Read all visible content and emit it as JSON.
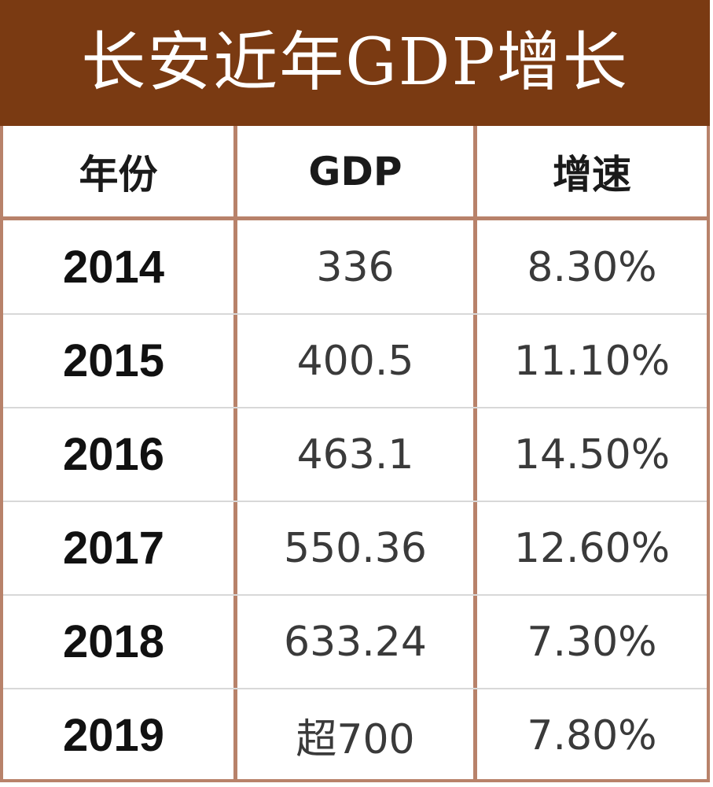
{
  "chart_data": {
    "type": "table",
    "title": "长安近年GDP增长",
    "columns": [
      "年份",
      "GDP",
      "增速"
    ],
    "rows": [
      {
        "year": "2014",
        "gdp": "336",
        "growth": "8.30%"
      },
      {
        "year": "2015",
        "gdp": "400.5",
        "growth": "11.10%"
      },
      {
        "year": "2016",
        "gdp": "463.1",
        "growth": "14.50%"
      },
      {
        "year": "2017",
        "gdp": "550.36",
        "growth": "12.60%"
      },
      {
        "year": "2018",
        "gdp": "633.24",
        "growth": "7.30%"
      },
      {
        "year": "2019",
        "gdp": "超700",
        "growth": "7.80%"
      }
    ]
  },
  "colors": {
    "title_bg": "#7a3a12",
    "border": "#b8826a",
    "row_divider": "#d8d8d8"
  }
}
